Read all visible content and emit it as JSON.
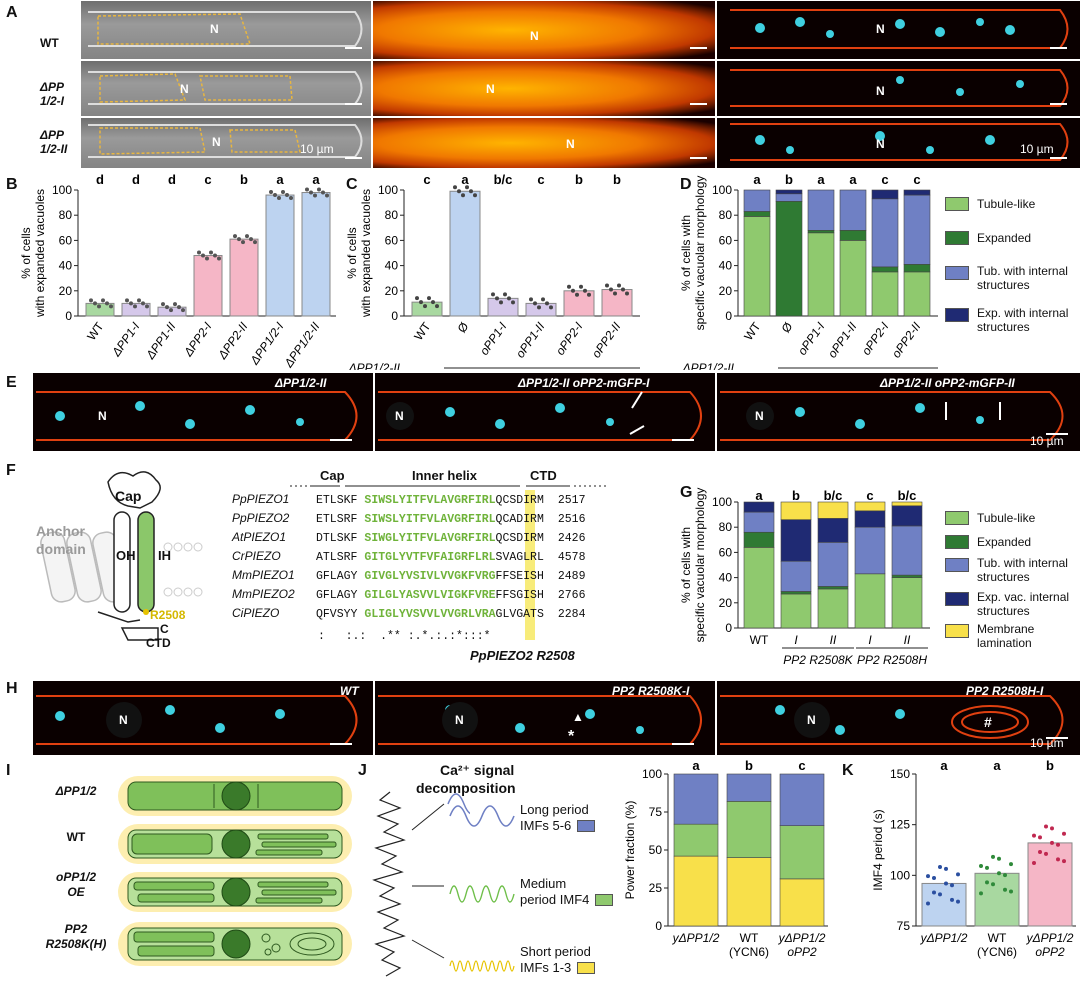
{
  "colors": {
    "wt_green": "#a8d8a0",
    "pp1_purple": "#d5c8ea",
    "pp2_pink": "#f5b6c6",
    "pp12_blue": "#bdd3f0",
    "tub": "#8fc96e",
    "exp": "#2f7a33",
    "tubint": "#6f80c4",
    "expint": "#1f2a73",
    "memb": "#f8e04a"
  },
  "panel_letters": [
    "A",
    "B",
    "C",
    "D",
    "E",
    "F",
    "G",
    "H",
    "I",
    "J",
    "K"
  ],
  "panel_a": {
    "rows": [
      "WT",
      "ΔPP 1/2-I",
      "ΔPP 1/2-II"
    ],
    "nucleus": "N",
    "scale": "10 µm"
  },
  "panel_e": {
    "titles": [
      "ΔPP1/2-II",
      "ΔPP1/2-II oPP2-mGFP-I",
      "ΔPP1/2-II oPP2-mGFP-II"
    ],
    "nucleus": "N",
    "scale": "10 µm"
  },
  "panel_h": {
    "titles": [
      "WT",
      "PP2 R2508K-I",
      "PP2 R2508H-I"
    ],
    "marks": [
      "▲",
      "*",
      "#"
    ],
    "nucleus": "N",
    "scale": "10 µm"
  },
  "chart_data": [
    {
      "panel": "B",
      "type": "bar",
      "ylabel": "% of cells with expanded vacuoles",
      "ylim": [
        0,
        100
      ],
      "categories": [
        "WT",
        "ΔPP1-I",
        "ΔPP1-II",
        "ΔPP2-I",
        "ΔPP2-II",
        "ΔPP1/2-I",
        "ΔPP1/2-II"
      ],
      "values": [
        10,
        10,
        7,
        48,
        61,
        96,
        98
      ],
      "letters": [
        "d",
        "d",
        "d",
        "c",
        "b",
        "a",
        "a"
      ]
    },
    {
      "panel": "C",
      "type": "bar",
      "ylabel": "% of cells with expanded vacuoles",
      "ylim": [
        0,
        100
      ],
      "categories": [
        "WT",
        "Ø",
        "oPP1-I",
        "oPP1-II",
        "oPP2-I",
        "oPP2-II"
      ],
      "values": [
        11,
        99,
        14,
        10,
        20,
        21
      ],
      "letters": [
        "c",
        "a",
        "b/c",
        "c",
        "b",
        "b"
      ],
      "group_label": "ΔPP1/2-II"
    },
    {
      "panel": "D",
      "type": "stacked-bar",
      "ylabel": "% of cells with specific vacuolar morphology",
      "ylim": [
        0,
        100
      ],
      "categories": [
        "WT",
        "Ø",
        "oPP1-I",
        "oPP1-II",
        "oPP2-I",
        "oPP2-II"
      ],
      "letters": [
        "a",
        "b",
        "a",
        "a",
        "c",
        "c"
      ],
      "group_label": "ΔPP1/2-II",
      "series": [
        {
          "name": "Tubule-like",
          "values": [
            79,
            0,
            66,
            60,
            35,
            35
          ]
        },
        {
          "name": "Expanded",
          "values": [
            4,
            91,
            2,
            8,
            4,
            6
          ]
        },
        {
          "name": "Tub. with internal structures",
          "values": [
            17,
            6,
            32,
            32,
            54,
            55
          ]
        },
        {
          "name": "Exp. with internal structures",
          "values": [
            0,
            3,
            0,
            0,
            7,
            4
          ]
        }
      ]
    },
    {
      "panel": "G",
      "type": "stacked-bar",
      "ylabel": "% of cells with specific vacuolar morphology",
      "ylim": [
        0,
        100
      ],
      "categories": [
        "WT",
        "I",
        "II",
        "I",
        "II"
      ],
      "group_labels": [
        "PP2 R2508K",
        "PP2 R2508H"
      ],
      "letters": [
        "a",
        "b",
        "b/c",
        "c",
        "b/c"
      ],
      "series": [
        {
          "name": "Tubule-like",
          "values": [
            64,
            27,
            31,
            43,
            40
          ]
        },
        {
          "name": "Expanded",
          "values": [
            12,
            2,
            2,
            0,
            2
          ]
        },
        {
          "name": "Tub. with internal structures",
          "values": [
            16,
            24,
            35,
            37,
            39
          ]
        },
        {
          "name": "Exp. vac. internal structures",
          "values": [
            8,
            33,
            19,
            13,
            16
          ]
        },
        {
          "name": "Membrane lamination",
          "values": [
            0,
            14,
            13,
            7,
            3
          ]
        }
      ]
    },
    {
      "panel": "J",
      "type": "stacked-bar",
      "ylabel": "Power fraction (%)",
      "ylim": [
        0,
        100
      ],
      "categories": [
        "yΔPP1/2",
        "WT (YCN6)",
        "yΔPP1/2 oPP2"
      ],
      "letters": [
        "a",
        "b",
        "c"
      ],
      "series": [
        {
          "name": "Short period IMFs 1-3",
          "values": [
            46,
            45,
            31
          ]
        },
        {
          "name": "Medium period IMF4",
          "values": [
            21,
            37,
            35
          ]
        },
        {
          "name": "Long period IMFs 5-6",
          "values": [
            33,
            18,
            34
          ]
        }
      ]
    },
    {
      "panel": "K",
      "type": "bar",
      "ylabel": "IMF4 period (s)",
      "ylim": [
        75,
        150
      ],
      "categories": [
        "yΔPP1/2",
        "WT (YCN6)",
        "yΔPP1/2 oPP2"
      ],
      "values": [
        96,
        101,
        116
      ],
      "letters": [
        "a",
        "a",
        "b"
      ],
      "yticks": [
        75,
        100,
        125,
        150
      ]
    }
  ],
  "legend_d": [
    "Tubule-like",
    "Expanded",
    "Tub. with internal structures",
    "Exp. with internal structures"
  ],
  "legend_g": [
    "Tubule-like",
    "Expanded",
    "Tub. with internal structures",
    "Exp. vac. internal structures",
    "Membrane lamination"
  ],
  "panel_f": {
    "diagram_labels": [
      "Cap",
      "Anchor domain",
      "OH",
      "IH",
      "R2508",
      "C",
      "CTD"
    ],
    "header": [
      "Cap",
      "Inner helix",
      "CTD"
    ],
    "rows": [
      {
        "name": "PpPIEZO1",
        "pre": "ETLSKF",
        "helix": "SIWSLYITFVLAVGRFIRL",
        "mark": "Q",
        "post": "CSDIRM",
        "num": "2517"
      },
      {
        "name": "PpPIEZO2",
        "pre": "ETLSRF",
        "helix": "SIWSLYITFVLAVGRFIRL",
        "mark": "Q",
        "post": "CADIRM",
        "num": "2516"
      },
      {
        "name": "AtPIEZO1",
        "pre": "DTLSKF",
        "helix": "SIWGLYITFVLAVGRFIRL",
        "mark": "Q",
        "post": "CSDIRM",
        "num": "2426"
      },
      {
        "name": "CrPIEZO",
        "pre": "ATLSRF",
        "helix": "GITGLYVTFVFAIGRFLRL",
        "mark": "S",
        "post": "VAGLRL",
        "num": "4578"
      },
      {
        "name": "MmPIEZO1",
        "pre": "GFLAGY",
        "helix": "GIVGLYVSIVLVVGKFVRG",
        "mark": "F",
        "post": "FSEISH",
        "num": "2489"
      },
      {
        "name": "MmPIEZO2",
        "pre": "GFLAGY",
        "helix": "GILGLYASVVLVIGKFVRE",
        "mark": "F",
        "post": "FSGISH",
        "num": "2766"
      },
      {
        "name": "CiPIEZO",
        "pre": "QFVSYY",
        "helix": "GLIGLYVSVVLVVGRLVRA",
        "mark": "G",
        "post": "LVGATS",
        "num": "2284"
      }
    ],
    "consensus": ":   :.:  .** :.*.:.:*:::*",
    "caption": "PpPIEZO2 R2508"
  },
  "panel_i": {
    "rows": [
      "ΔPP1/2",
      "WT",
      "oPP1/2 OE",
      "PP2 R2508K(H)"
    ]
  },
  "panel_j": {
    "title_line1": "Ca²⁺ signal",
    "title_line2": "decomposition",
    "components": [
      [
        "Long period",
        "IMFs 5-6"
      ],
      [
        "Medium",
        "period IMF4"
      ],
      [
        "Short period",
        "IMFs 1-3"
      ]
    ]
  }
}
